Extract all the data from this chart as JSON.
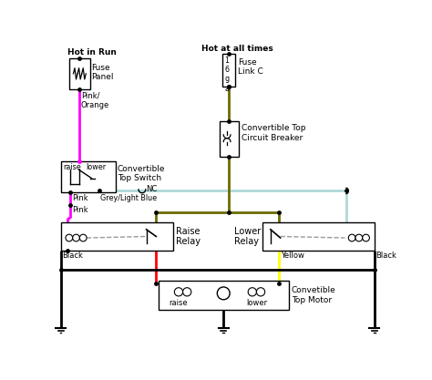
{
  "bg_color": "#ffffff",
  "wire_colors": {
    "dark_yellow": "#6B6B00",
    "pink": "#FF00FF",
    "light_blue": "#B0D8D8",
    "red": "#FF0000",
    "yellow": "#FFFF00",
    "black": "#000000"
  },
  "labels": {
    "hot_in_run": "Hot in Run",
    "hot_at_all_times": "Hot at all times",
    "fuse_panel": "Fuse\nPanel",
    "fuse_link_c": "Fuse\nLink C",
    "conv_top_switch": "Convertible\nTop Switch",
    "conv_top_cb": "Convertible Top\nCircuit Breaker",
    "raise_relay": "Raise\nRelay",
    "lower_relay": "Lower\nRelay",
    "conv_top_motor": "Convetible\nTop Motor",
    "pink_orange": "Pink/\nOrange",
    "pink1": "Pink",
    "pink2": "Pink",
    "grey_lb": "Grey/Light Blue",
    "nc": "NC",
    "black1": "Black",
    "black2": "Black",
    "yellow_lbl": "Yellow",
    "raise_lbl": "raise",
    "lower_lbl": "lower",
    "16ga": "1\n6\ng\na"
  }
}
